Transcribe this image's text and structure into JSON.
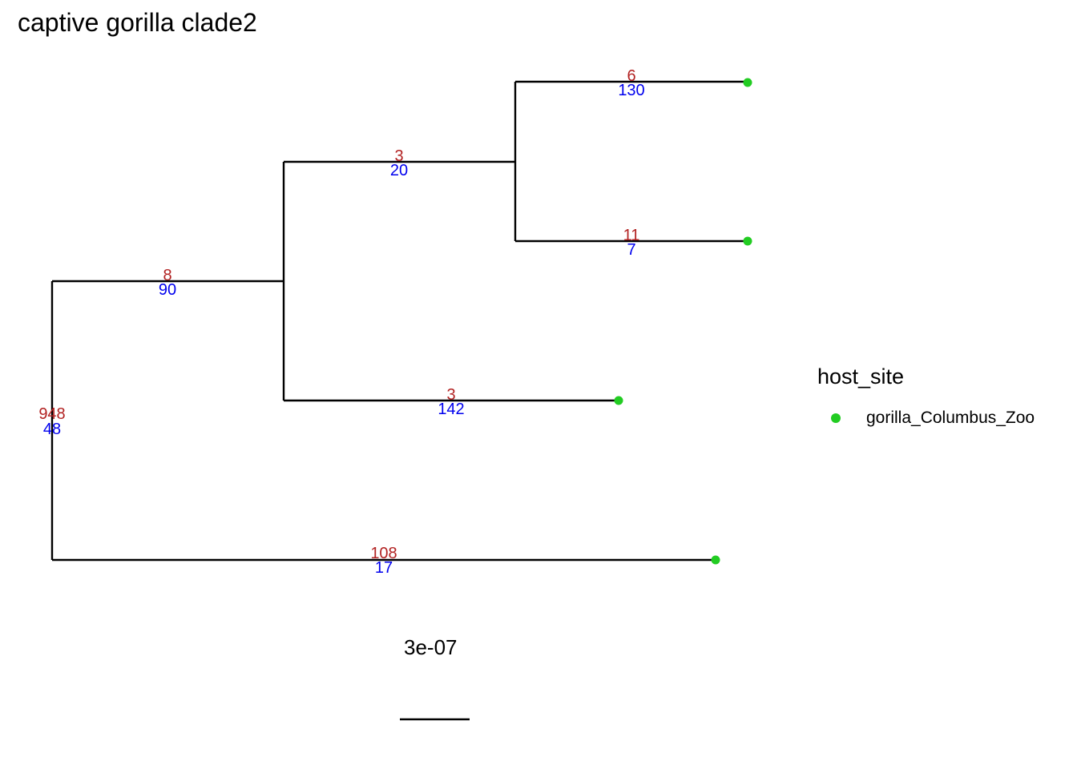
{
  "title": "captive gorilla clade2",
  "colors": {
    "tip": "#22cc22",
    "top_label": "#b22222",
    "bottom_label": "#0000ee",
    "branch": "#000000"
  },
  "branches": [
    {
      "id": "b-root-bottom",
      "top": "948",
      "bottom": "48"
    },
    {
      "id": "b-internal-a",
      "top": "8",
      "bottom": "90"
    },
    {
      "id": "b-internal-b",
      "top": "3",
      "bottom": "20"
    },
    {
      "id": "b-tip-1",
      "top": "6",
      "bottom": "130"
    },
    {
      "id": "b-tip-2",
      "top": "11",
      "bottom": "7"
    },
    {
      "id": "b-tip-3",
      "top": "3",
      "bottom": "142"
    },
    {
      "id": "b-tip-4",
      "top": "108",
      "bottom": "17"
    }
  ],
  "legend": {
    "title": "host_site",
    "items": [
      {
        "label": "gorilla_Columbus_Zoo"
      }
    ]
  },
  "scale_bar": {
    "label": "3e-07"
  }
}
